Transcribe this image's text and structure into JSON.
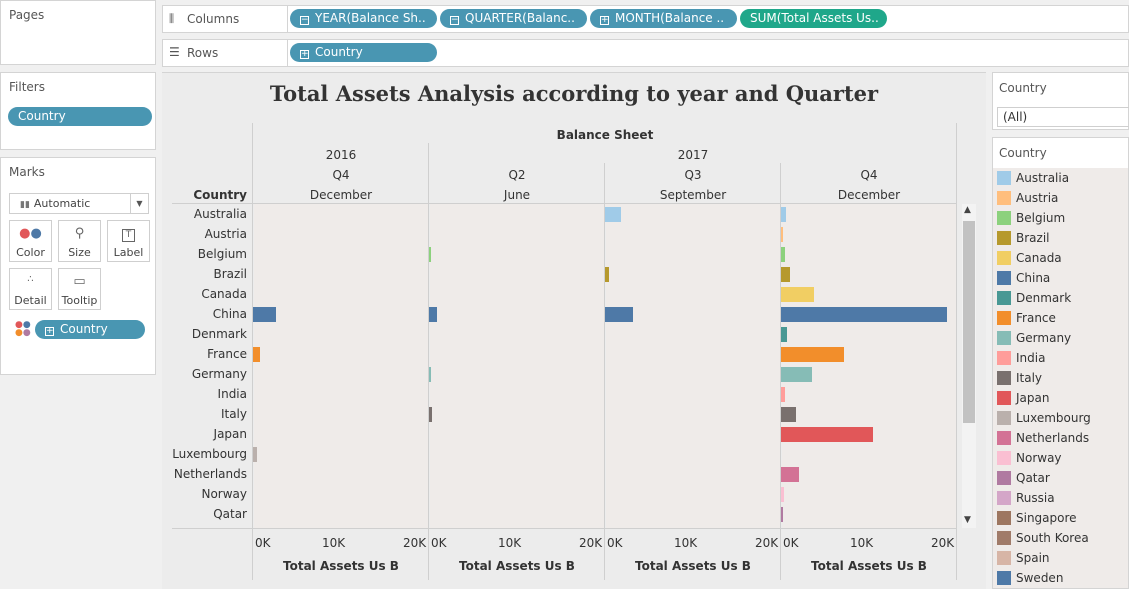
{
  "pages": {
    "title": "Pages"
  },
  "columns_shelf": {
    "label": "Columns",
    "pills": [
      {
        "label": "YEAR(Balance Sh..",
        "symbol": "−"
      },
      {
        "label": "QUARTER(Balanc..",
        "symbol": "−"
      },
      {
        "label": "MONTH(Balance ..",
        "symbol": "+"
      },
      {
        "label": "SUM(Total Assets Us..",
        "symbol": ""
      }
    ]
  },
  "rows_shelf": {
    "label": "Rows",
    "pills": [
      {
        "label": "Country",
        "symbol": "+"
      }
    ]
  },
  "filters": {
    "title": "Filters",
    "pill": "Country"
  },
  "marks": {
    "title": "Marks",
    "type": "Automatic",
    "buttons": [
      "Color",
      "Size",
      "Label",
      "Detail",
      "Tooltip"
    ],
    "pill": "Country"
  },
  "filter_card": {
    "title": "Country",
    "value": "(All)"
  },
  "legend": {
    "title": "Country",
    "items": [
      {
        "name": "Australia",
        "color": "#a0cbe8"
      },
      {
        "name": "Austria",
        "color": "#ffbe7d"
      },
      {
        "name": "Belgium",
        "color": "#8cd17d"
      },
      {
        "name": "Brazil",
        "color": "#b6992d"
      },
      {
        "name": "Canada",
        "color": "#f1ce63"
      },
      {
        "name": "China",
        "color": "#4e79a7"
      },
      {
        "name": "Denmark",
        "color": "#499894"
      },
      {
        "name": "France",
        "color": "#f28e2b"
      },
      {
        "name": "Germany",
        "color": "#86bcb6"
      },
      {
        "name": "India",
        "color": "#ff9d9a"
      },
      {
        "name": "Italy",
        "color": "#79706e"
      },
      {
        "name": "Japan",
        "color": "#e15759"
      },
      {
        "name": "Luxembourg",
        "color": "#bab0ac"
      },
      {
        "name": "Netherlands",
        "color": "#d37295"
      },
      {
        "name": "Norway",
        "color": "#fabfd2"
      },
      {
        "name": "Qatar",
        "color": "#b07aa1"
      },
      {
        "name": "Russia",
        "color": "#d4a6c8"
      },
      {
        "name": "Singapore",
        "color": "#9d7660"
      },
      {
        "name": "South Korea",
        "color": "#a07b69"
      },
      {
        "name": "Spain",
        "color": "#d7b5a6"
      },
      {
        "name": "Sweden",
        "color": "#4e79a7"
      }
    ]
  },
  "chart_data": {
    "type": "bar",
    "title": "Total Assets Analysis according to year and Quarter",
    "header_top": "Balance Sheet",
    "row_header": "Country",
    "years": [
      {
        "label": "2016",
        "span": 1
      },
      {
        "label": "2017",
        "span": 3
      }
    ],
    "panes": [
      {
        "year": "2016",
        "quarter": "Q4",
        "month": "December"
      },
      {
        "year": "2017",
        "quarter": "Q2",
        "month": "June"
      },
      {
        "year": "2017",
        "quarter": "Q3",
        "month": "September"
      },
      {
        "year": "2017",
        "quarter": "Q4",
        "month": "December"
      }
    ],
    "categories": [
      "Australia",
      "Austria",
      "Belgium",
      "Brazil",
      "Canada",
      "China",
      "Denmark",
      "France",
      "Germany",
      "India",
      "Italy",
      "Japan",
      "Luxembourg",
      "Netherlands",
      "Norway",
      "Qatar"
    ],
    "series": [
      {
        "values": [
          0,
          0,
          0,
          0,
          0,
          2800,
          0,
          800,
          0,
          0,
          0,
          0,
          500,
          0,
          0,
          0
        ]
      },
      {
        "values": [
          0,
          0,
          150,
          0,
          0,
          900,
          0,
          0,
          100,
          0,
          350,
          0,
          0,
          0,
          0,
          0
        ]
      },
      {
        "values": [
          1900,
          0,
          0,
          500,
          0,
          3300,
          0,
          0,
          0,
          0,
          0,
          0,
          0,
          0,
          0,
          0
        ]
      },
      {
        "values": [
          650,
          100,
          450,
          1100,
          3900,
          19900,
          700,
          7600,
          3700,
          500,
          1800,
          11000,
          0,
          2100,
          300,
          100
        ]
      }
    ],
    "xlim": [
      0,
      20000
    ],
    "ticks": [
      "0K",
      "10K",
      "20K"
    ],
    "xlabel": "Total Assets Us B"
  }
}
